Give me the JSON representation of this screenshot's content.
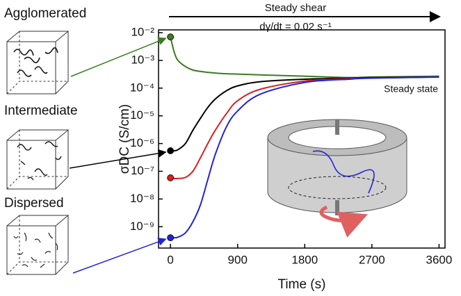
{
  "chart_data": {
    "type": "line",
    "title": "Steady shear",
    "subtitle": "dγ/dt = 0.02 s⁻¹",
    "annotation": "Steady state",
    "x_label": "Time (s)",
    "y_label": "σDC (S/cm)",
    "log_y": true,
    "x": [
      0,
      50,
      100,
      200,
      300,
      400,
      500,
      600,
      750,
      900,
      1200,
      1800,
      2400,
      2700,
      3600
    ],
    "series": [
      {
        "name": "Agglomerated",
        "color": "#3a7d1e",
        "values": [
          0.007,
          0.002,
          0.001,
          0.0006,
          0.00045,
          0.0004,
          0.00037,
          0.00035,
          0.00033,
          0.00032,
          0.0003,
          0.00027,
          0.00024,
          0.00025,
          0.00027
        ]
      },
      {
        "name": "Intermediate",
        "color": "#000000",
        "values": [
          5.5e-07,
          5.5e-07,
          6e-07,
          1e-06,
          3e-06,
          8e-06,
          2e-05,
          4e-05,
          8e-05,
          0.00012,
          0.00017,
          0.00021,
          0.00023,
          0.00024,
          0.00025
        ]
      },
      {
        "name": "",
        "color": "#d42020",
        "values": [
          5.8e-08,
          5.5e-08,
          5.5e-08,
          6e-08,
          1e-07,
          3e-07,
          1e-06,
          3e-06,
          1.2e-05,
          3.5e-05,
          9e-05,
          0.00018,
          0.00022,
          0.00023,
          0.00025
        ]
      },
      {
        "name": "Dispersed",
        "color": "#2222dd",
        "values": [
          4e-10,
          4e-10,
          4.2e-10,
          6e-10,
          1.5e-09,
          6e-09,
          5e-08,
          4e-07,
          4e-06,
          1.5e-05,
          6e-05,
          0.00016,
          0.00021,
          0.00023,
          0.00025
        ]
      }
    ],
    "xlim": [
      -160,
      3680
    ],
    "xticks": [
      0,
      900,
      1800,
      2700,
      3600
    ],
    "ylim": [
      1.7e-10,
      0.0126
    ],
    "yticks": [
      {
        "value": 0.01,
        "label": "10⁻²"
      },
      {
        "value": 0.001,
        "label": "10⁻³"
      },
      {
        "value": 0.0001,
        "label": "10⁻⁴"
      },
      {
        "value": 1e-05,
        "label": "10⁻⁵"
      },
      {
        "value": 1e-06,
        "label": "10⁻⁶"
      },
      {
        "value": 1e-07,
        "label": "10⁻⁷"
      },
      {
        "value": 1e-08,
        "label": "10⁻⁸"
      },
      {
        "value": 1e-09,
        "label": "10⁻⁹"
      }
    ]
  }
}
